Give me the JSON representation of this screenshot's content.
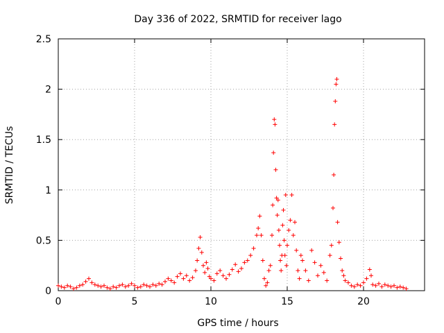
{
  "chart_data": {
    "type": "scatter",
    "title": "Day 336 of 2022, SRMTID for receiver lago",
    "xlabel": "GPS time / hours",
    "ylabel": "SRMTID / TECUs",
    "xlim": [
      0,
      24
    ],
    "ylim": [
      0,
      2.5
    ],
    "x_ticks": [
      0,
      5,
      10,
      15,
      20
    ],
    "y_ticks": [
      0,
      0.5,
      1,
      1.5,
      2,
      2.5
    ],
    "x_tick_labels": [
      "0",
      "5",
      "10",
      "15",
      "20"
    ],
    "y_tick_labels": [
      "0",
      "0.5",
      "1",
      "1.5",
      "2",
      "2.5"
    ],
    "grid": true,
    "marker": "+",
    "series": [
      {
        "name": "SRMTID",
        "color": "#ff0000",
        "x": [
          0.0,
          0.2,
          0.4,
          0.6,
          0.8,
          1.0,
          1.2,
          1.4,
          1.6,
          1.8,
          2.0,
          2.2,
          2.4,
          2.6,
          2.8,
          3.0,
          3.2,
          3.4,
          3.6,
          3.8,
          4.0,
          4.2,
          4.4,
          4.6,
          4.8,
          5.0,
          5.2,
          5.4,
          5.6,
          5.8,
          6.0,
          6.2,
          6.4,
          6.6,
          6.8,
          7.0,
          7.2,
          7.4,
          7.6,
          7.8,
          8.0,
          8.2,
          8.4,
          8.6,
          8.8,
          9.0,
          9.1,
          9.2,
          9.3,
          9.4,
          9.5,
          9.6,
          9.7,
          9.8,
          9.9,
          10.0,
          10.2,
          10.4,
          10.6,
          10.8,
          11.0,
          11.2,
          11.4,
          11.6,
          11.8,
          12.0,
          12.2,
          12.4,
          12.6,
          12.8,
          13.0,
          13.1,
          13.2,
          13.3,
          13.4,
          13.5,
          13.6,
          13.7,
          13.8,
          13.9,
          14.0,
          14.05,
          14.1,
          14.15,
          14.2,
          14.25,
          14.3,
          14.35,
          14.4,
          14.45,
          14.5,
          14.55,
          14.6,
          14.65,
          14.7,
          14.75,
          14.8,
          14.85,
          14.9,
          14.95,
          15.0,
          15.1,
          15.2,
          15.3,
          15.4,
          15.5,
          15.6,
          15.7,
          15.8,
          15.9,
          16.0,
          16.2,
          16.4,
          16.6,
          16.8,
          17.0,
          17.2,
          17.4,
          17.6,
          17.8,
          17.9,
          18.0,
          18.05,
          18.1,
          18.15,
          18.2,
          18.25,
          18.3,
          18.4,
          18.5,
          18.6,
          18.7,
          18.8,
          19.0,
          19.2,
          19.4,
          19.6,
          19.8,
          20.0,
          20.2,
          20.4,
          20.5,
          20.6,
          20.8,
          21.0,
          21.2,
          21.4,
          21.6,
          21.8,
          22.0,
          22.2,
          22.4,
          22.6,
          22.8
        ],
        "y": [
          0.05,
          0.04,
          0.03,
          0.05,
          0.04,
          0.02,
          0.03,
          0.05,
          0.06,
          0.09,
          0.12,
          0.08,
          0.06,
          0.05,
          0.04,
          0.05,
          0.03,
          0.02,
          0.04,
          0.03,
          0.05,
          0.06,
          0.04,
          0.05,
          0.07,
          0.05,
          0.03,
          0.04,
          0.06,
          0.05,
          0.04,
          0.06,
          0.05,
          0.07,
          0.06,
          0.09,
          0.12,
          0.1,
          0.08,
          0.14,
          0.17,
          0.12,
          0.15,
          0.1,
          0.13,
          0.2,
          0.3,
          0.42,
          0.53,
          0.38,
          0.25,
          0.18,
          0.28,
          0.22,
          0.14,
          0.12,
          0.1,
          0.17,
          0.2,
          0.15,
          0.12,
          0.16,
          0.21,
          0.26,
          0.19,
          0.22,
          0.28,
          0.3,
          0.35,
          0.42,
          0.55,
          0.62,
          0.74,
          0.55,
          0.3,
          0.12,
          0.05,
          0.08,
          0.2,
          0.25,
          0.55,
          0.85,
          1.37,
          1.7,
          1.65,
          1.2,
          0.92,
          0.75,
          0.9,
          0.6,
          0.45,
          0.3,
          0.2,
          0.35,
          0.65,
          0.8,
          0.5,
          0.35,
          0.95,
          0.25,
          0.45,
          0.6,
          0.7,
          0.95,
          0.55,
          0.68,
          0.4,
          0.2,
          0.12,
          0.35,
          0.3,
          0.2,
          0.1,
          0.4,
          0.28,
          0.15,
          0.25,
          0.18,
          0.1,
          0.35,
          0.45,
          0.82,
          1.15,
          1.65,
          1.88,
          2.05,
          2.1,
          0.68,
          0.48,
          0.32,
          0.2,
          0.15,
          0.1,
          0.08,
          0.05,
          0.04,
          0.06,
          0.05,
          0.08,
          0.12,
          0.21,
          0.15,
          0.06,
          0.05,
          0.07,
          0.04,
          0.06,
          0.05,
          0.04,
          0.05,
          0.03,
          0.04,
          0.03,
          0.02
        ]
      }
    ]
  }
}
